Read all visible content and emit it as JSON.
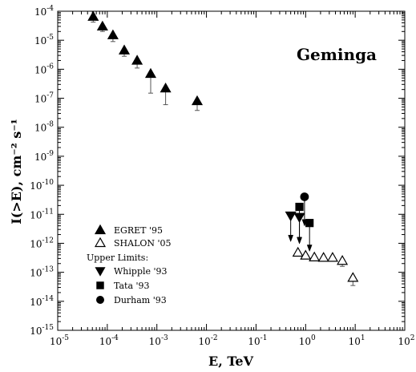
{
  "chart_data": {
    "type": "scatter",
    "title": "Geminga",
    "xlabel": "E, TeV",
    "ylabel": "I(>E), cm⁻² s⁻¹",
    "xscale": "log",
    "yscale": "log",
    "xlim": [
      1e-05,
      100
    ],
    "ylim": [
      1e-15,
      0.0001
    ],
    "x_ticks": [
      {
        "value": 1e-05,
        "base": "10",
        "exp": "-5"
      },
      {
        "value": 0.0001,
        "base": "10",
        "exp": "-4"
      },
      {
        "value": 0.001,
        "base": "10",
        "exp": "-3"
      },
      {
        "value": 0.01,
        "base": "10",
        "exp": "-2"
      },
      {
        "value": 0.1,
        "base": "10",
        "exp": "-1"
      },
      {
        "value": 1,
        "base": "10",
        "exp": "0"
      },
      {
        "value": 10,
        "base": "10",
        "exp": "1"
      },
      {
        "value": 100,
        "base": "10",
        "exp": "2"
      }
    ],
    "y_ticks": [
      {
        "value": 0.0001,
        "base": "10",
        "exp": "-4"
      },
      {
        "value": 1e-05,
        "base": "10",
        "exp": "-5"
      },
      {
        "value": 1e-06,
        "base": "10",
        "exp": "-6"
      },
      {
        "value": 1e-07,
        "base": "10",
        "exp": "-7"
      },
      {
        "value": 1e-08,
        "base": "10",
        "exp": "-8"
      },
      {
        "value": 1e-09,
        "base": "10",
        "exp": "-9"
      },
      {
        "value": 1e-10,
        "base": "10",
        "exp": "-10"
      },
      {
        "value": 1e-11,
        "base": "10",
        "exp": "-11"
      },
      {
        "value": 1e-12,
        "base": "10",
        "exp": "-12"
      },
      {
        "value": 1e-13,
        "base": "10",
        "exp": "-13"
      },
      {
        "value": 1e-14,
        "base": "10",
        "exp": "-14"
      },
      {
        "value": 1e-15,
        "base": "10",
        "exp": "-15"
      }
    ],
    "legend": {
      "placement": "bottom-left",
      "entries": [
        {
          "series": "egret",
          "label": "EGRET '95"
        },
        {
          "series": "shalon",
          "label": "SHALON '05"
        }
      ],
      "upper_limits_heading": "Upper Limits:",
      "upper_entries": [
        {
          "series": "whipple",
          "label": "Whipple '93"
        },
        {
          "series": "tata",
          "label": "Tata '93"
        },
        {
          "series": "durham",
          "label": "Durham '93"
        }
      ]
    },
    "series": [
      {
        "id": "egret",
        "name": "EGRET '95",
        "marker": "triangle-up",
        "filled": true,
        "points": [
          {
            "x": 5.2e-05,
            "y": 6.5e-05,
            "err_low": 4.2e-05
          },
          {
            "x": 8e-05,
            "y": 3e-05,
            "err_low": 2e-05
          },
          {
            "x": 0.00013,
            "y": 1.5e-05,
            "err_low": 9e-06
          },
          {
            "x": 0.00022,
            "y": 4.5e-06,
            "err_low": 2.8e-06
          },
          {
            "x": 0.0004,
            "y": 2e-06,
            "err_low": 1.1e-06
          },
          {
            "x": 0.00075,
            "y": 7e-07,
            "err_low": 1.5e-07
          },
          {
            "x": 0.0015,
            "y": 2.2e-07,
            "err_low": 6e-08
          },
          {
            "x": 0.0065,
            "y": 8e-08,
            "err_low": 3.8e-08
          }
        ]
      },
      {
        "id": "shalon",
        "name": "SHALON '05",
        "marker": "triangle-up",
        "filled": false,
        "points": [
          {
            "x": 0.7,
            "y": 4.8e-13
          },
          {
            "x": 1.0,
            "y": 3.8e-13
          },
          {
            "x": 1.5,
            "y": 3.3e-13
          },
          {
            "x": 2.3,
            "y": 3.2e-13
          },
          {
            "x": 3.5,
            "y": 3.2e-13
          },
          {
            "x": 5.5,
            "y": 2.5e-13,
            "err_low": 1.6e-13
          },
          {
            "x": 9.0,
            "y": 6.5e-14,
            "err_low": 3.5e-14
          }
        ]
      },
      {
        "id": "whipple",
        "name": "Whipple '93",
        "marker": "triangle-down",
        "filled": true,
        "upper_limit": true,
        "points": [
          {
            "x": 0.5,
            "y": 9e-12,
            "arrow_to": 1.3e-12
          },
          {
            "x": 0.75,
            "y": 8e-12,
            "arrow_to": 1.1e-12
          }
        ]
      },
      {
        "id": "tata",
        "name": "Tata '93",
        "marker": "square",
        "filled": true,
        "upper_limit": true,
        "points": [
          {
            "x": 0.75,
            "y": 1.8e-11,
            "arrow_to": 1.1e-12
          },
          {
            "x": 1.2,
            "y": 5e-12,
            "arrow_to": 6e-13
          }
        ]
      },
      {
        "id": "durham",
        "name": "Durham '93",
        "marker": "circle",
        "filled": true,
        "upper_limit": true,
        "points": [
          {
            "x": 0.95,
            "y": 4e-11,
            "arrow_to": 4.5e-12
          }
        ]
      }
    ]
  }
}
